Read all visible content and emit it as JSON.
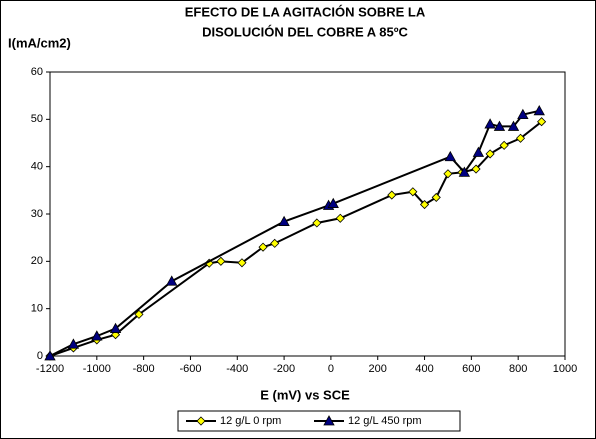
{
  "chart_data": {
    "type": "line",
    "title": [
      "EFECTO DE LA AGITACIÓN SOBRE LA",
      "DISOLUCIÓN DEL COBRE A 85ºC"
    ],
    "y_label": "I(mA/cm2)",
    "x_label": "E (mV) vs SCE",
    "xlim": [
      -1200,
      1000
    ],
    "xticks": [
      -1200,
      -1000,
      -800,
      -600,
      -400,
      -200,
      0,
      200,
      400,
      600,
      800,
      1000
    ],
    "ylim": [
      0,
      60
    ],
    "yticks": [
      0,
      10,
      20,
      30,
      40,
      50,
      60
    ],
    "legend": "bottom",
    "series": [
      {
        "name": "12 g/L 0 rpm",
        "color": "#ffff00",
        "marker": "diamond",
        "x": [
          -1200,
          -1100,
          -1000,
          -920,
          -820,
          -520,
          -470,
          -380,
          -290,
          -240,
          -60,
          40,
          260,
          350,
          400,
          450,
          500,
          560,
          620,
          680,
          740,
          810,
          900
        ],
        "values": [
          0,
          1.7,
          3.4,
          4.5,
          8.8,
          19.6,
          20,
          19.7,
          23,
          23.8,
          28.1,
          29.1,
          34,
          34.7,
          32,
          33.5,
          38.5,
          38.8,
          39.5,
          42.7,
          44.5,
          46,
          49.5
        ]
      },
      {
        "name": "12 g/L 450 rpm",
        "color": "#000080",
        "marker": "triangle",
        "x": [
          -1200,
          -1100,
          -1000,
          -920,
          -680,
          -200,
          -10,
          10,
          510,
          570,
          630,
          680,
          720,
          780,
          820,
          890
        ],
        "values": [
          0,
          2.5,
          4.2,
          5.8,
          15.8,
          28.4,
          31.8,
          32.2,
          42.1,
          38.8,
          43,
          49,
          48.5,
          48.5,
          51,
          51.8
        ]
      }
    ]
  }
}
